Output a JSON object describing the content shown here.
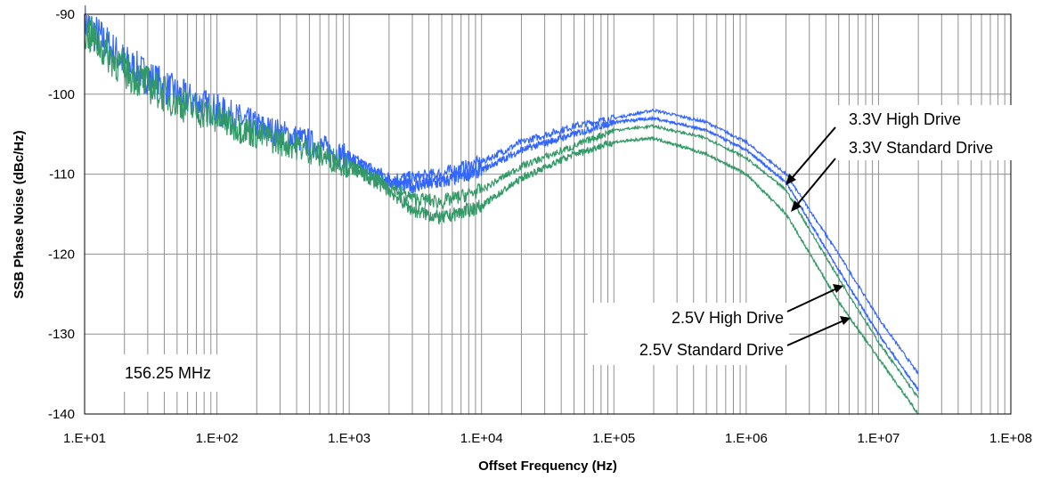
{
  "chart_data": {
    "type": "line",
    "title": "",
    "xlabel": "Offset Frequency (Hz)",
    "ylabel": "SSB Phase  Noise (dBc/Hz)",
    "x_scale": "log",
    "xlim": [
      10,
      100000000
    ],
    "ylim": [
      -140,
      -90
    ],
    "x_ticks": [
      10,
      100,
      1000,
      10000,
      100000,
      1000000,
      10000000,
      100000000
    ],
    "x_tick_labels": [
      "1.E+01",
      "1.E+02",
      "1.E+03",
      "1.E+04",
      "1.E+05",
      "1.E+06",
      "1.E+07",
      "1.E+08"
    ],
    "y_ticks": [
      -90,
      -100,
      -110,
      -120,
      -130,
      -140
    ],
    "y_tick_labels": [
      "-90",
      "-100",
      "-110",
      "-120",
      "-130",
      "-140"
    ],
    "grid": "vertical log gridlines, horizontal major gridlines",
    "box_label": "156.25 MHz",
    "annotations": [
      {
        "text": "3.3V High Drive",
        "series": "3.3V High Drive"
      },
      {
        "text": "3.3V Standard Drive",
        "series": "3.3V Standard Drive"
      },
      {
        "text": "2.5V High Drive",
        "series": "2.5V High Drive"
      },
      {
        "text": "2.5V Standard Drive",
        "series": "2.5V Standard Drive"
      }
    ],
    "series": [
      {
        "name": "3.3V High Drive",
        "color": "#3366ff",
        "x": [
          10,
          20,
          50,
          100,
          200,
          500,
          1000,
          2000,
          3000,
          5000,
          10000,
          20000,
          50000,
          100000,
          200000,
          500000,
          1000000,
          2000000,
          5000000,
          10000000,
          20000000
        ],
        "y": [
          -91,
          -96,
          -100,
          -102,
          -104,
          -106,
          -108,
          -110.5,
          -110.5,
          -110,
          -108.5,
          -106,
          -104,
          -103,
          -102,
          -103.5,
          -106,
          -110,
          -120,
          -128,
          -135
        ]
      },
      {
        "name": "3.3V Standard Drive",
        "color": "#3366ff",
        "x": [
          1000,
          2000,
          3000,
          5000,
          10000,
          20000,
          50000,
          100000,
          200000,
          500000,
          1000000,
          2000000,
          5000000,
          10000000,
          20000000
        ],
        "y": [
          -108,
          -111,
          -111.5,
          -111,
          -109.5,
          -107,
          -105,
          -103.5,
          -103,
          -104.5,
          -107,
          -111,
          -122,
          -130,
          -137
        ]
      },
      {
        "name": "2.5V High Drive",
        "color": "#339966",
        "x": [
          10,
          20,
          50,
          100,
          200,
          500,
          1000,
          2000,
          3000,
          5000,
          10000,
          20000,
          50000,
          100000,
          200000,
          500000,
          1000000,
          2000000,
          5000000,
          10000000,
          20000000
        ],
        "y": [
          -92,
          -97,
          -101,
          -103,
          -105,
          -107,
          -109,
          -111.5,
          -113,
          -113.5,
          -112,
          -109,
          -106.5,
          -104.5,
          -104,
          -105.5,
          -108,
          -112,
          -123,
          -131,
          -138
        ]
      },
      {
        "name": "2.5V Standard Drive",
        "color": "#339966",
        "x": [
          1000,
          2000,
          3000,
          5000,
          10000,
          20000,
          50000,
          100000,
          200000,
          500000,
          1000000,
          2000000,
          5000000,
          10000000,
          20000000
        ],
        "y": [
          -109,
          -112,
          -114.5,
          -115.5,
          -114,
          -110.5,
          -107.5,
          -106,
          -105.5,
          -107.5,
          -110,
          -115,
          -126,
          -133,
          -140
        ]
      }
    ]
  }
}
